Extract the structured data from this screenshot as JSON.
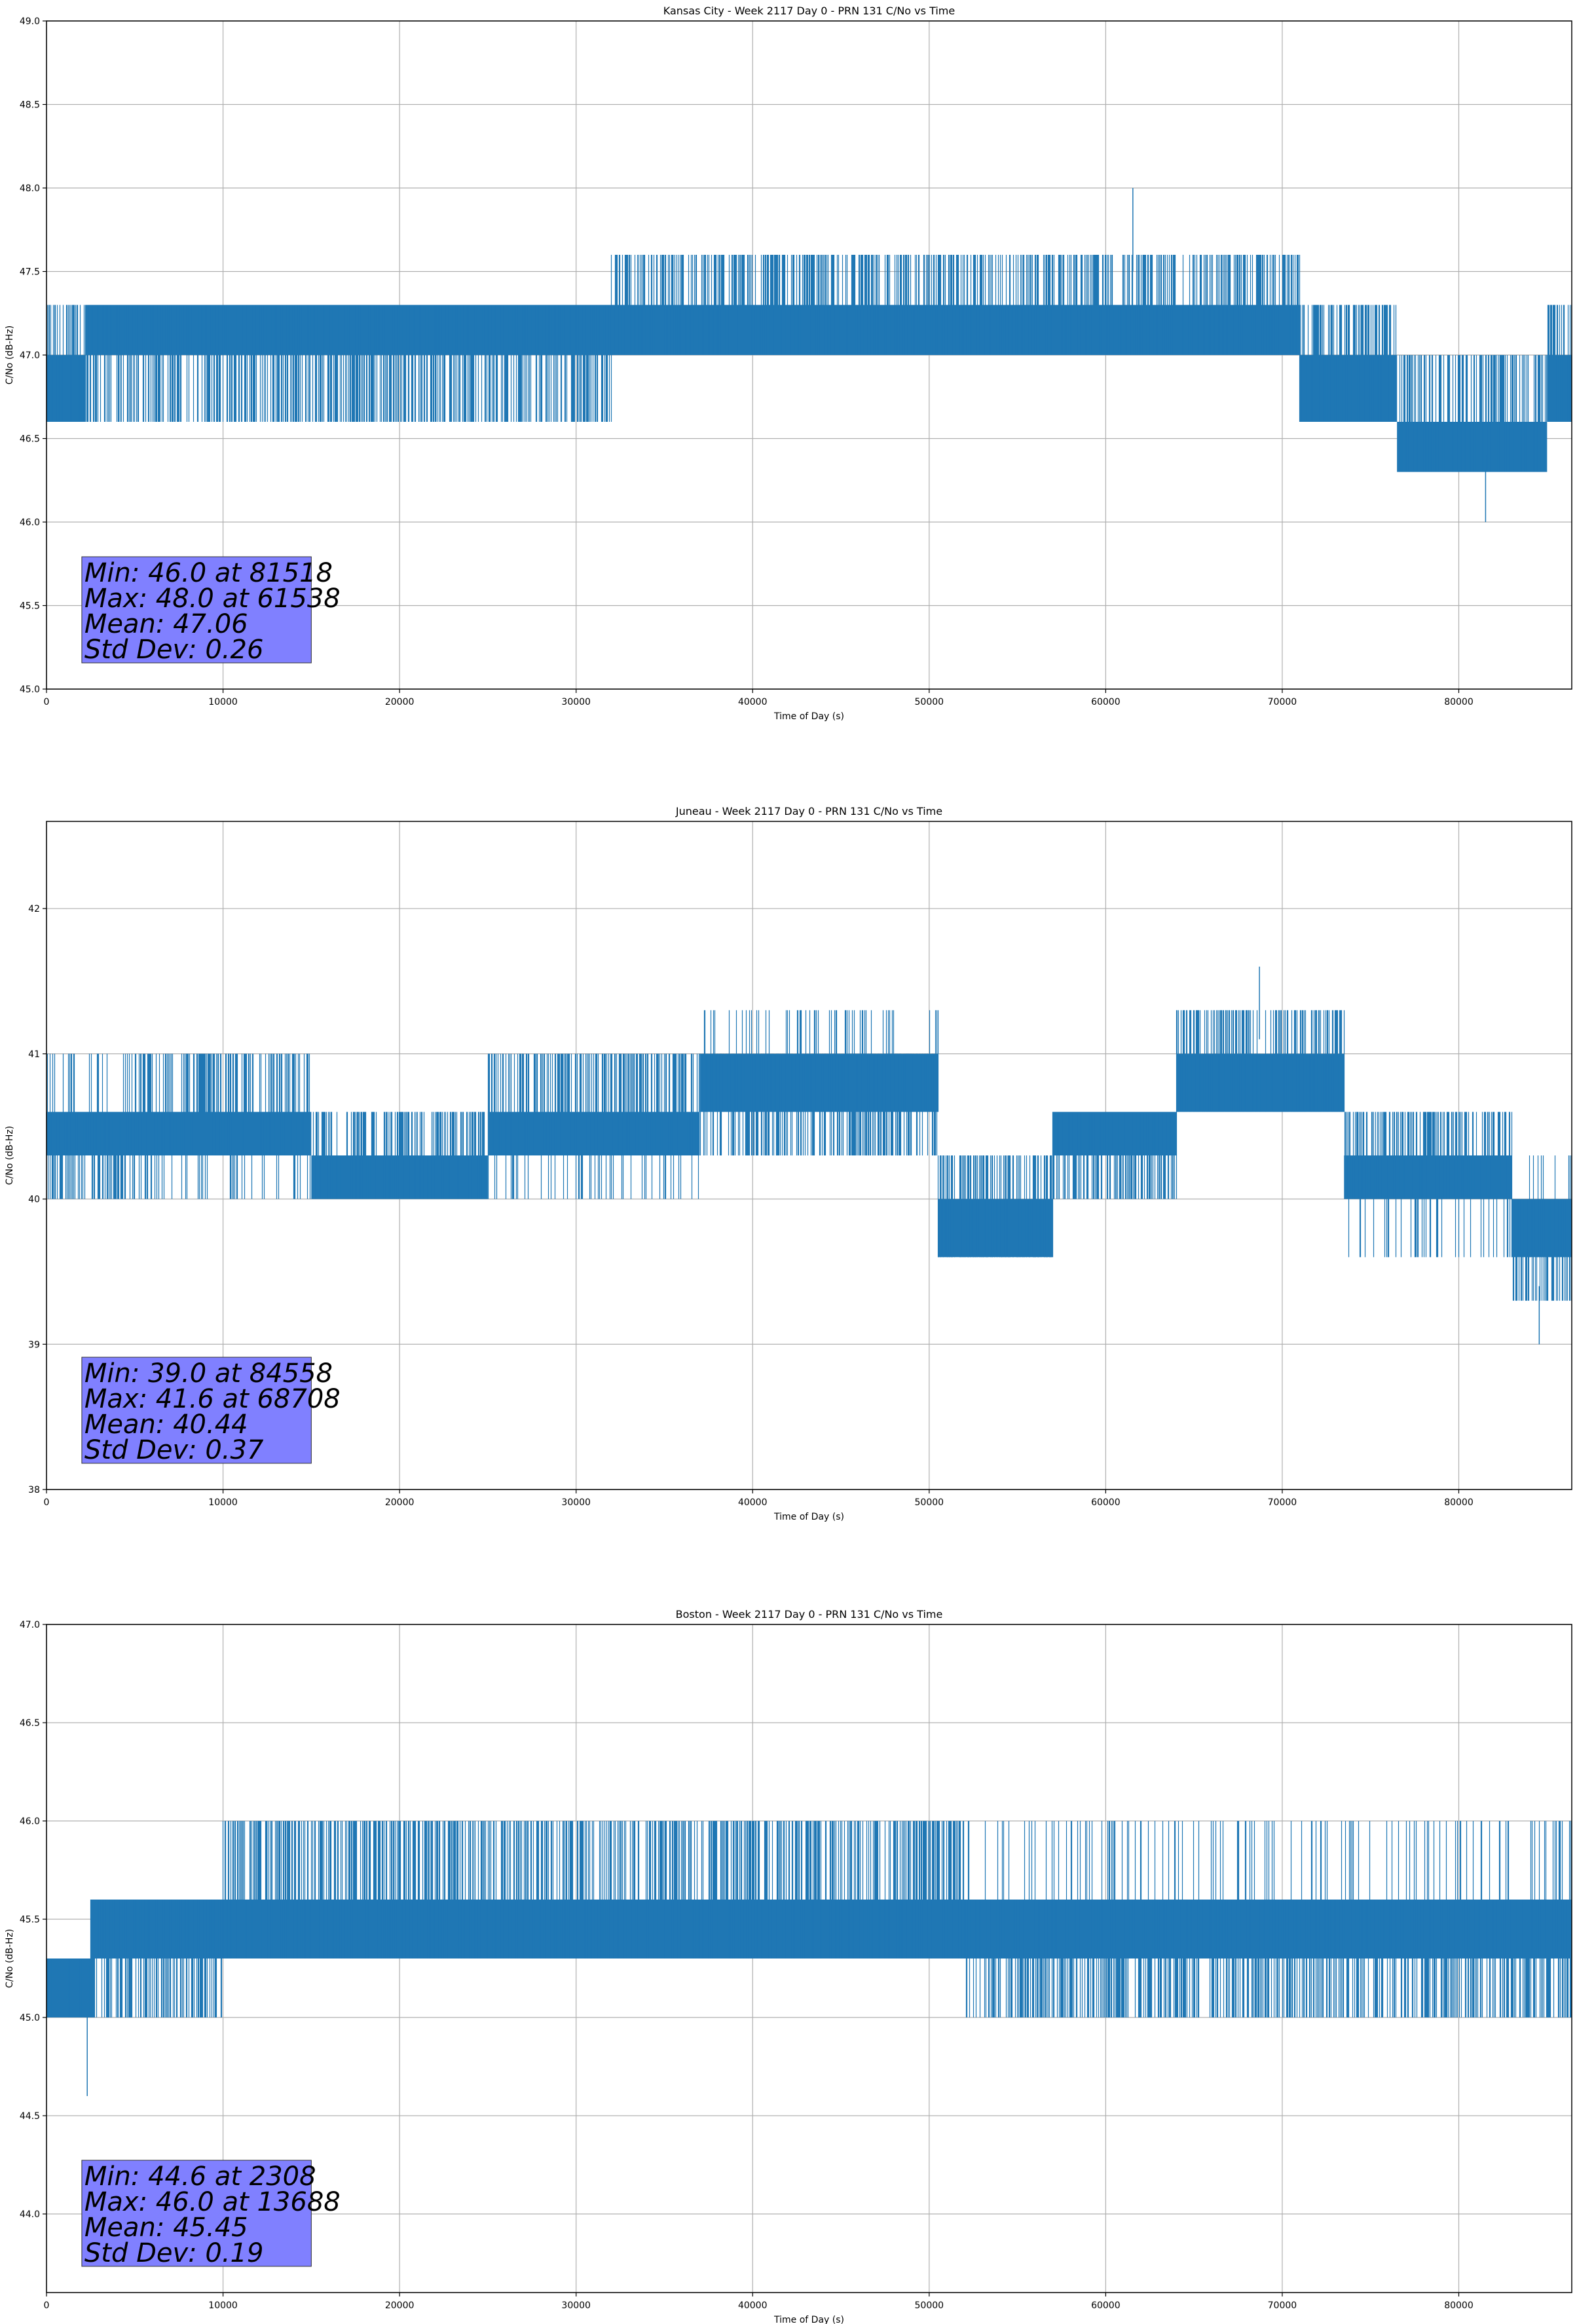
{
  "chart_data": [
    {
      "type": "line",
      "title": "Kansas City - Week 2117 Day 0 - PRN 131 C/No vs Time",
      "xlabel": "Time of Day (s)",
      "ylabel": "C/No (dB-Hz)",
      "xlim": [
        0,
        86400
      ],
      "ylim": [
        45.0,
        49.0
      ],
      "xticks": [
        0,
        10000,
        20000,
        30000,
        40000,
        50000,
        60000,
        70000,
        80000
      ],
      "yticks": [
        45.0,
        45.5,
        46.0,
        46.5,
        47.0,
        47.5,
        48.0,
        48.5,
        49.0
      ],
      "ytick_labels": [
        "45.0",
        "45.5",
        "46.0",
        "46.5",
        "47.0",
        "47.5",
        "48.0",
        "48.5",
        "49.0"
      ],
      "grid": true,
      "line_color": "#1f77b4",
      "stats_box_color": "#8080ff",
      "stats": [
        "Min: 46.0 at 81518",
        "Max: 48.0 at 61538",
        "Mean: 47.06",
        "Std Dev: 0.26"
      ],
      "series": [
        {
          "name": "C/No",
          "segments": [
            {
              "x": [
                0,
                2200
              ],
              "bands": [
                [
                  46.6,
                  47.0
                ],
                [
                  46.6,
                  47.3
                ]
              ]
            },
            {
              "x": [
                2200,
                16500
              ],
              "bands": [
                [
                  47.0,
                  47.3
                ],
                [
                  46.6,
                  47.0
                ]
              ]
            },
            {
              "x": [
                16500,
                22000
              ],
              "bands": [
                [
                  47.0,
                  47.3
                ],
                [
                  46.6,
                  47.0
                ]
              ]
            },
            {
              "x": [
                22000,
                32000
              ],
              "bands": [
                [
                  47.0,
                  47.3
                ],
                [
                  46.6,
                  47.0
                ]
              ]
            },
            {
              "x": [
                32000,
                50500
              ],
              "bands": [
                [
                  47.0,
                  47.3
                ],
                [
                  47.3,
                  47.6
                ]
              ]
            },
            {
              "x": [
                50500,
                71000
              ],
              "bands": [
                [
                  47.0,
                  47.3
                ],
                [
                  47.3,
                  47.6
                ]
              ]
            },
            {
              "x": [
                71000,
                76500
              ],
              "bands": [
                [
                  46.6,
                  47.0
                ],
                [
                  47.0,
                  47.3
                ]
              ]
            },
            {
              "x": [
                76500,
                85000
              ],
              "bands": [
                [
                  46.3,
                  46.6
                ],
                [
                  46.6,
                  47.0
                ]
              ]
            },
            {
              "x": [
                85000,
                86400
              ],
              "bands": [
                [
                  46.6,
                  47.0
                ],
                [
                  47.0,
                  47.3
                ]
              ]
            }
          ],
          "min_point": [
            81518,
            46.0
          ],
          "max_point": [
            61538,
            48.0
          ]
        }
      ]
    },
    {
      "type": "line",
      "title": "Juneau - Week 2117 Day 0 - PRN 131 C/No vs Time",
      "xlabel": "Time of Day (s)",
      "ylabel": "C/No (dB-Hz)",
      "xlim": [
        0,
        86400
      ],
      "ylim": [
        38.0,
        42.6
      ],
      "xticks": [
        0,
        10000,
        20000,
        30000,
        40000,
        50000,
        60000,
        70000,
        80000
      ],
      "yticks": [
        38,
        39,
        40,
        41,
        42
      ],
      "ytick_labels": [
        "38",
        "39",
        "40",
        "41",
        "42"
      ],
      "grid": true,
      "line_color": "#1f77b4",
      "stats_box_color": "#8080ff",
      "stats": [
        "Min: 39.0 at 84558",
        "Max: 41.6 at 68708",
        "Mean: 40.44",
        "Std Dev: 0.37"
      ],
      "series": [
        {
          "name": "C/No",
          "segments": [
            {
              "x": [
                0,
                5000
              ],
              "bands": [
                [
                  40.3,
                  40.6
                ],
                [
                  40.0,
                  40.3
                ],
                [
                  40.6,
                  41.0
                ]
              ]
            },
            {
              "x": [
                5000,
                15000
              ],
              "bands": [
                [
                  40.3,
                  40.6
                ],
                [
                  40.6,
                  41.0
                ],
                [
                  40.0,
                  40.3
                ]
              ]
            },
            {
              "x": [
                15000,
                25000
              ],
              "bands": [
                [
                  40.0,
                  40.3
                ],
                [
                  40.3,
                  40.6
                ]
              ]
            },
            {
              "x": [
                25000,
                37000
              ],
              "bands": [
                [
                  40.3,
                  40.6
                ],
                [
                  40.6,
                  41.0
                ],
                [
                  40.0,
                  40.3
                ]
              ]
            },
            {
              "x": [
                37000,
                50500
              ],
              "bands": [
                [
                  40.6,
                  41.0
                ],
                [
                  40.3,
                  40.6
                ],
                [
                  41.0,
                  41.3
                ]
              ]
            },
            {
              "x": [
                50500,
                57000
              ],
              "bands": [
                [
                  39.6,
                  40.0
                ],
                [
                  40.0,
                  40.3
                ]
              ]
            },
            {
              "x": [
                57000,
                64000
              ],
              "bands": [
                [
                  40.3,
                  40.6
                ],
                [
                  40.0,
                  40.3
                ]
              ]
            },
            {
              "x": [
                64000,
                73500
              ],
              "bands": [
                [
                  40.6,
                  41.0
                ],
                [
                  41.0,
                  41.3
                ]
              ]
            },
            {
              "x": [
                73500,
                83000
              ],
              "bands": [
                [
                  40.0,
                  40.3
                ],
                [
                  40.3,
                  40.6
                ],
                [
                  39.6,
                  40.0
                ]
              ]
            },
            {
              "x": [
                83000,
                86400
              ],
              "bands": [
                [
                  39.6,
                  40.0
                ],
                [
                  39.3,
                  39.6
                ],
                [
                  40.0,
                  40.3
                ]
              ]
            }
          ],
          "min_point": [
            84558,
            39.0
          ],
          "max_point": [
            68708,
            41.6
          ]
        }
      ]
    },
    {
      "type": "line",
      "title": "Boston - Week 2117 Day 0 - PRN 131 C/No vs Time",
      "xlabel": "Time of Day (s)",
      "ylabel": "C/No (dB-Hz)",
      "xlim": [
        0,
        86400
      ],
      "ylim": [
        43.6,
        47.0
      ],
      "xticks": [
        0,
        10000,
        20000,
        30000,
        40000,
        50000,
        60000,
        70000,
        80000
      ],
      "yticks": [
        44.0,
        44.5,
        45.0,
        45.5,
        46.0,
        46.5,
        47.0
      ],
      "ytick_labels": [
        "44.0",
        "44.5",
        "45.0",
        "45.5",
        "46.0",
        "46.5",
        "47.0"
      ],
      "grid": true,
      "line_color": "#1f77b4",
      "stats_box_color": "#8080ff",
      "stats": [
        "Min: 44.6 at 2308",
        "Max: 46.0 at 13688",
        "Mean: 45.45",
        "Std Dev: 0.19"
      ],
      "series": [
        {
          "name": "C/No",
          "segments": [
            {
              "x": [
                0,
                2500
              ],
              "bands": [
                [
                  45.0,
                  45.3
                ]
              ]
            },
            {
              "x": [
                2500,
                10000
              ],
              "bands": [
                [
                  45.3,
                  45.6
                ],
                [
                  45.0,
                  45.3
                ]
              ]
            },
            {
              "x": [
                10000,
                24000
              ],
              "bands": [
                [
                  45.3,
                  45.6
                ],
                [
                  45.6,
                  46.0
                ]
              ]
            },
            {
              "x": [
                24000,
                52000
              ],
              "bands": [
                [
                  45.3,
                  45.6
                ],
                [
                  45.6,
                  46.0
                ]
              ]
            },
            {
              "x": [
                52000,
                66000
              ],
              "bands": [
                [
                  45.3,
                  45.6
                ],
                [
                  45.0,
                  45.3
                ],
                [
                  45.6,
                  46.0
                ]
              ]
            },
            {
              "x": [
                66000,
                86400
              ],
              "bands": [
                [
                  45.3,
                  45.6
                ],
                [
                  45.0,
                  45.3
                ],
                [
                  45.6,
                  46.0
                ]
              ]
            }
          ],
          "min_point": [
            2308,
            44.6
          ],
          "max_point": [
            13688,
            46.0
          ]
        }
      ]
    }
  ]
}
